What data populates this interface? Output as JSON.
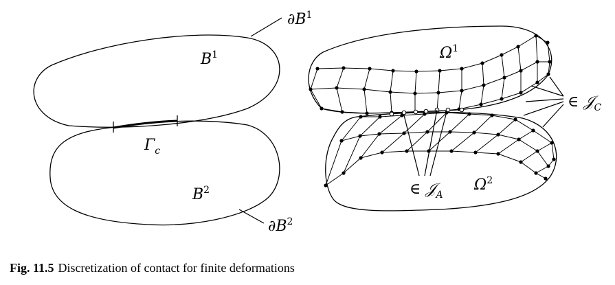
{
  "labels": {
    "dB1": "∂B",
    "dB1_sup": "1",
    "B1": "B",
    "B1_sup": "1",
    "Gamma_c": "Γ",
    "Gamma_c_sub": "c",
    "B2": "B",
    "B2_sup": "2",
    "dB2": "∂B",
    "dB2_sup": "2",
    "Omega1": "Ω",
    "Omega1_sup": "1",
    "Omega2": "Ω",
    "Omega2_sup": "2",
    "JC": "∈ 𝒥",
    "JC_sub": "C",
    "JA": "∈ 𝒥",
    "JA_sub": "A"
  },
  "caption": {
    "number": "Fig. 11.5",
    "text": "Discretization of contact for finite deformations"
  }
}
